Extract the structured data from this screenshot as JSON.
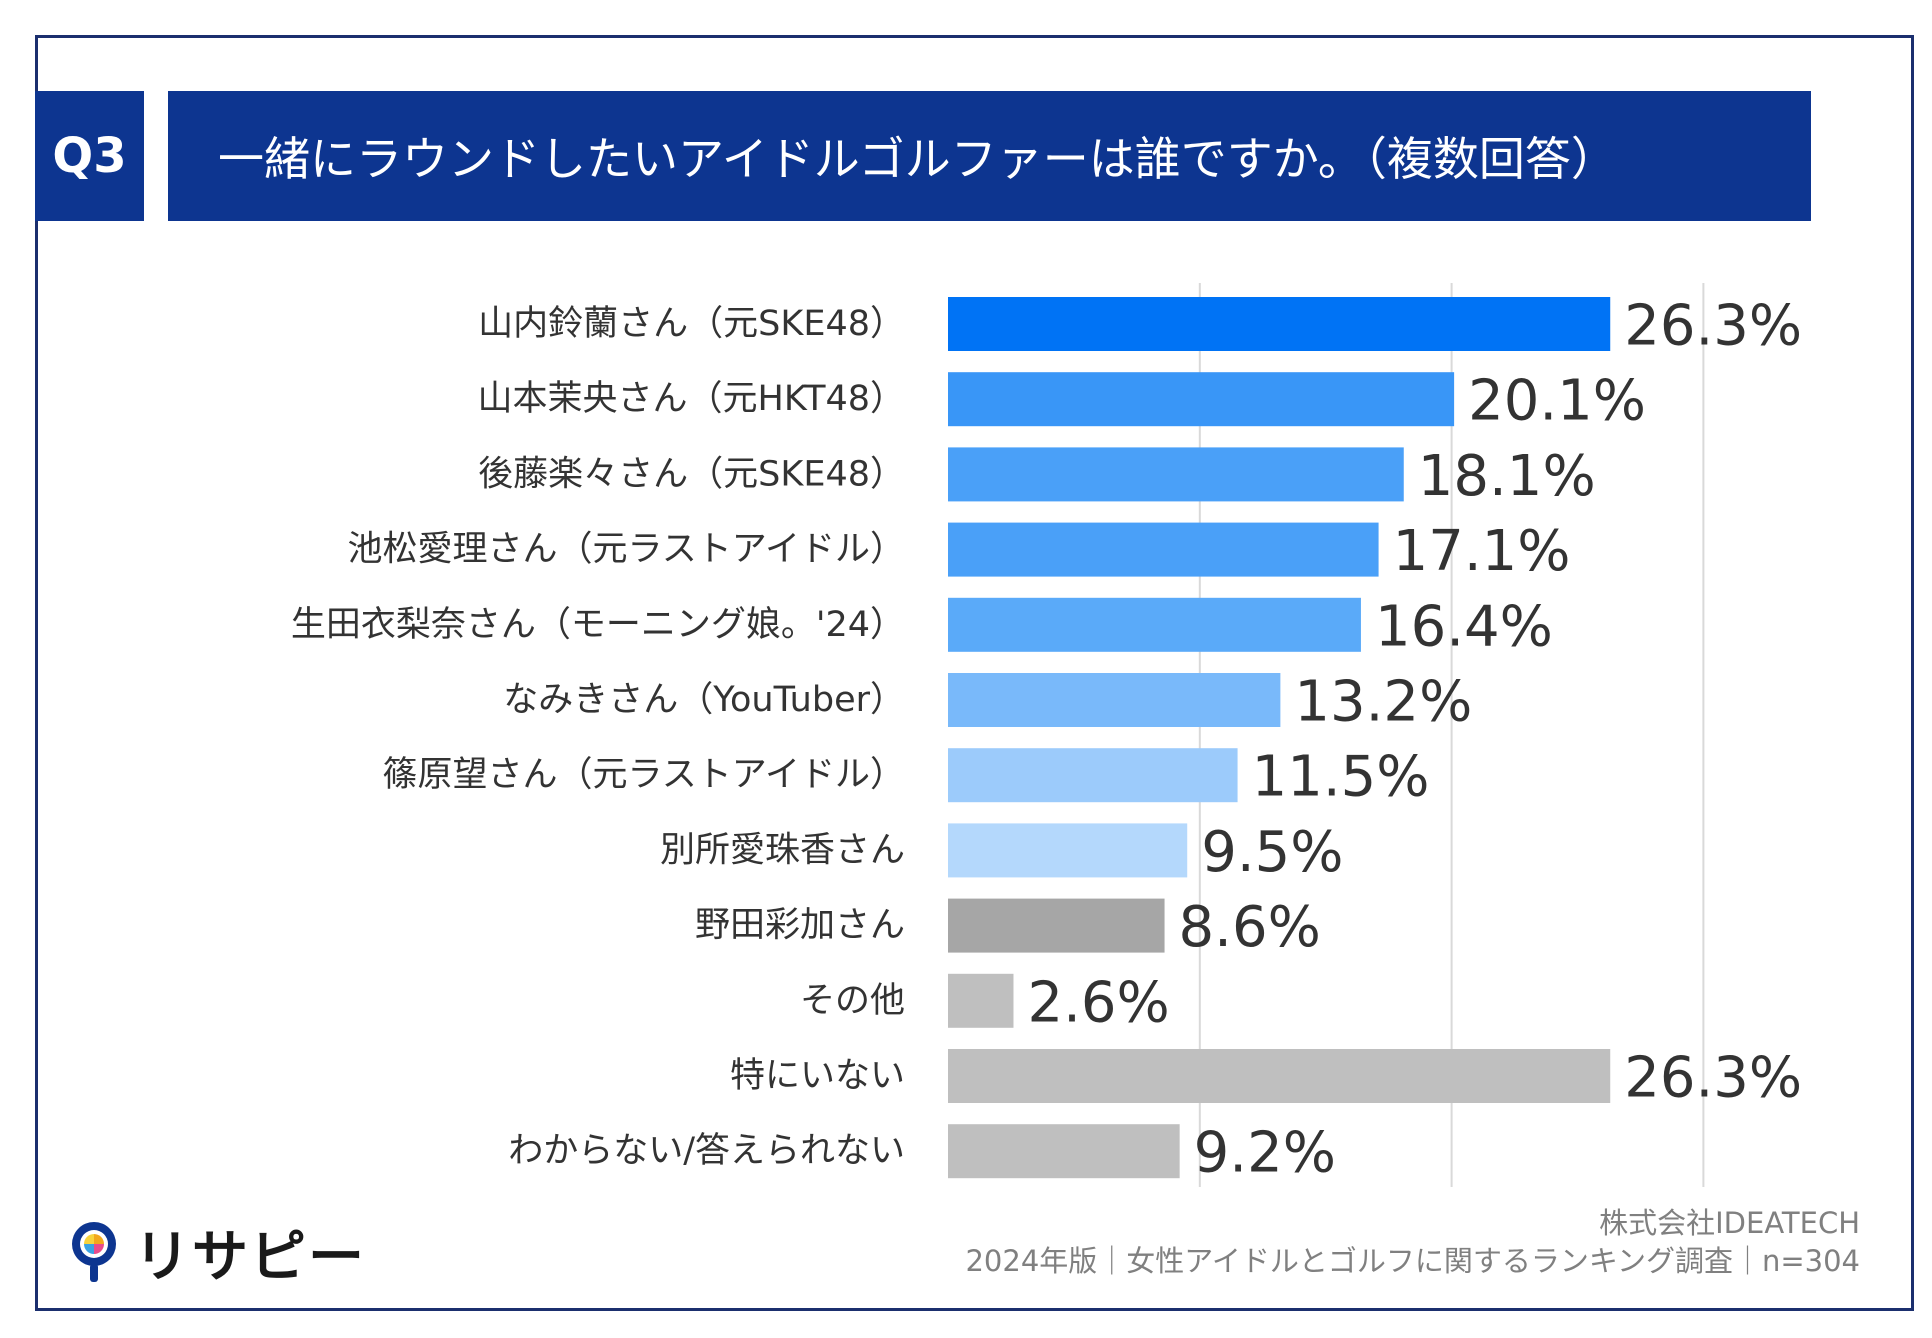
{
  "header": {
    "badge": "Q3",
    "title": "一緒にラウンドしたいアイドルゴルファーは誰ですか。（複数回答）"
  },
  "chart_data": {
    "type": "bar",
    "orientation": "horizontal",
    "categories": [
      "山内鈴蘭さん（元SKE48）",
      "山本茉央さん（元HKT48）",
      "後藤楽々さん（元SKE48）",
      "池松愛理さん（元ラストアイドル）",
      "生田衣梨奈さん（モーニング娘。'24）",
      "なみきさん（YouTuber）",
      "篠原望さん（元ラストアイドル）",
      "別所愛珠香さん",
      "野田彩加さん",
      "その他",
      "特にいない",
      "わからない/答えられない"
    ],
    "values": [
      26.3,
      20.1,
      18.1,
      17.1,
      16.4,
      13.2,
      11.5,
      9.5,
      8.6,
      2.6,
      26.3,
      9.2
    ],
    "value_labels": [
      "26.3%",
      "20.1%",
      "18.1%",
      "17.1%",
      "16.4%",
      "13.2%",
      "11.5%",
      "9.5%",
      "8.6%",
      "2.6%",
      "26.3%",
      "9.2%"
    ],
    "colors": [
      "#0073f5",
      "#3996f7",
      "#4aa0f8",
      "#4aa0f8",
      "#5aaaf9",
      "#79b9fa",
      "#9ccbfb",
      "#b4d8fc",
      "#a6a6a6",
      "#bfbfbf",
      "#bfbfbf",
      "#bfbfbf"
    ],
    "xlim": [
      0,
      30
    ],
    "grid": "vertical",
    "title": "",
    "xlabel": "",
    "ylabel": ""
  },
  "footer": {
    "company": "株式会社IDEATECH",
    "source": "2024年版｜女性アイドルとゴルフに関するランキング調査｜n=304"
  },
  "logo": {
    "text": "リサピー",
    "icon": "lightbulb-pin-icon"
  }
}
